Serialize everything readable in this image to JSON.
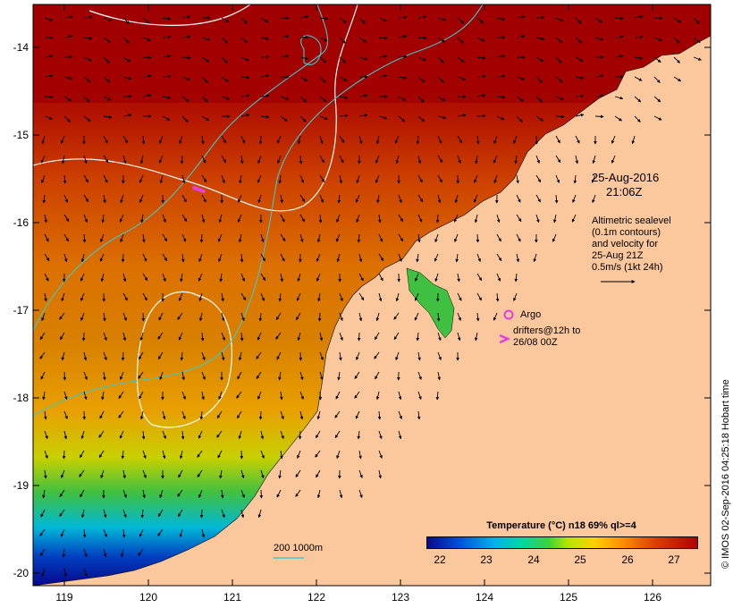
{
  "map": {
    "y_ticks": [
      "-14",
      "-15",
      "-16",
      "-17",
      "-18",
      "-19",
      "-20"
    ],
    "x_ticks": [
      "119",
      "120",
      "121",
      "122",
      "123",
      "124",
      "125",
      "126"
    ],
    "legend": {
      "date": "25-Aug-2016",
      "time": "21:06Z",
      "altimetry": [
        "Altimetric sealevel",
        "(0.1m contours)",
        "and velocity for",
        "25-Aug 21Z",
        "0.5m/s (1kt 24h)"
      ],
      "argo_label": "Argo",
      "drifters_label": [
        "drifters@12h to",
        "26/08 00Z"
      ],
      "scale_label": "200  1000m"
    },
    "colorbar": {
      "title": "Temperature (°C) n18 69% ql>=4",
      "ticks": [
        "22",
        "23",
        "24",
        "25",
        "26",
        "27"
      ]
    },
    "credit": "© IMOS 02-Sep-2016 04:25:18 Hobart time",
    "colors": {
      "land": "#fbc79c",
      "warm_sea": "#a00000",
      "cool_sea": "#00008c",
      "contour": "#ffffff",
      "isobath": "#40c8c8",
      "argo": "#e040e0"
    }
  }
}
